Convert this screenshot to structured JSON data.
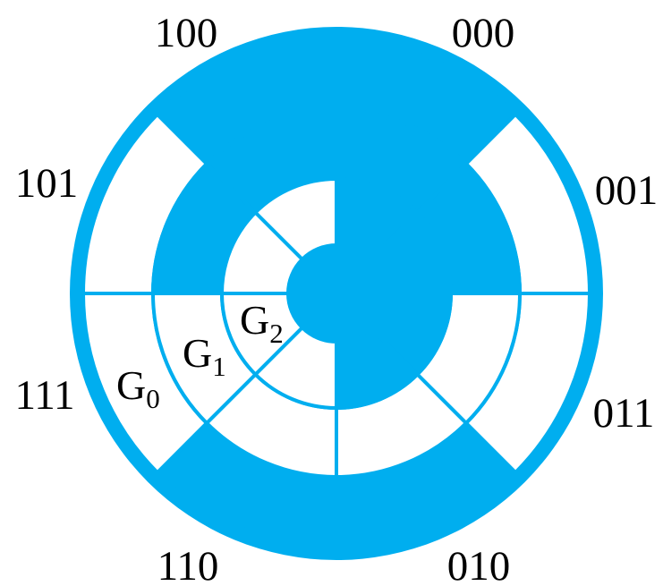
{
  "diagram": {
    "sectors": [
      {
        "code": "000"
      },
      {
        "code": "001"
      },
      {
        "code": "011"
      },
      {
        "code": "010"
      },
      {
        "code": "110"
      },
      {
        "code": "111"
      },
      {
        "code": "101"
      },
      {
        "code": "100"
      }
    ],
    "rings": [
      {
        "letter": "G",
        "subscript": "0"
      },
      {
        "letter": "G",
        "subscript": "1"
      },
      {
        "letter": "G",
        "subscript": "2"
      }
    ],
    "colors": {
      "disk": "#00AEEF",
      "bit_0": "#00AEEF",
      "bit_1": "#FFFFFF",
      "text": "#000000",
      "background": "#FFFFFF"
    }
  }
}
